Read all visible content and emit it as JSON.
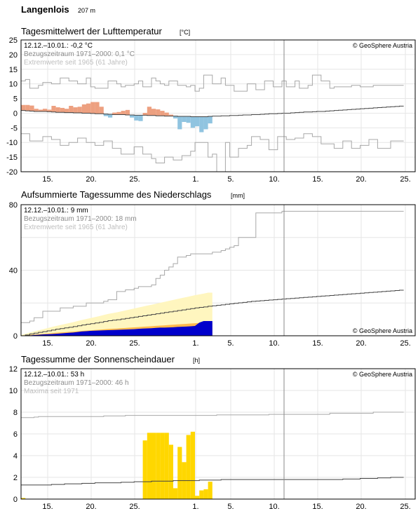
{
  "station": {
    "name": "Langenlois",
    "elevation": "207 m"
  },
  "colors": {
    "warm": "#eda080",
    "cold": "#90c4e0",
    "gridline": "#e6e6e6",
    "ref_line": "#444444",
    "extreme_line": "#a8a8a8",
    "precip_obs": "#0000cc",
    "precip_norm_fill": "#ffb84d",
    "precip_extreme_fill": "#fff6bf",
    "sun_obs": "#ffd700"
  },
  "icons": {
    "copyright": "copyright-symbol"
  },
  "chart_data": [
    {
      "type": "area",
      "title": "Tagesmittelwert der Lufttemperatur",
      "unit": "[°C]",
      "xlabel": "",
      "ylabel": "",
      "ylim": [
        -20,
        25
      ],
      "yticks": [
        "25",
        "20",
        "15",
        "10",
        "5",
        "0",
        "-5",
        "-10",
        "-15",
        "-20"
      ],
      "x_tick_labels": [
        "15.",
        "20.",
        "25.",
        "1.",
        "5.",
        "10.",
        "15.",
        "20.",
        "25."
      ],
      "annotations": {
        "period_value": "12.12.–10.01.: -0,2 °C",
        "reference": "Bezugszeitraum 1971–2000: 0,1 °C",
        "extremes": "Extremwerte seit 1965 (61 Jahre)"
      },
      "copyright": "© GeoSphere Austria",
      "grid": true,
      "series": [
        {
          "name": "Tagesmittel",
          "values": [
            2.8,
            2.8,
            2.6,
            1.5,
            1.2,
            1.5,
            1.2,
            2.5,
            2.0,
            1.8,
            1.5,
            2.5,
            2.0,
            2.2,
            3.0,
            3.3,
            3.8,
            3.8,
            2.2,
            -1.0,
            -1.5,
            0.2,
            0.4,
            0.8,
            1.1,
            -1.5,
            -2.5,
            -2.7,
            0.1,
            2.2,
            1.5,
            1.3,
            0.8,
            0.2,
            -0.5,
            -1.8,
            -5.5,
            -3.0,
            -3.3,
            -5.0,
            -4.5,
            -6.5,
            -5.5,
            -3.5
          ]
        },
        {
          "name": "Normalwert 1971–2000",
          "values": [
            0.9,
            0.8,
            0.7,
            0.6,
            0.6,
            0.6,
            0.5,
            0.4,
            0.3,
            0.3,
            0.2,
            0.2,
            0.1,
            0.1,
            0.0,
            0.0,
            -0.1,
            -0.2,
            -0.2,
            -0.3,
            -0.4,
            -0.5,
            -0.5,
            -0.5,
            -0.6,
            -0.6,
            -0.7,
            -0.7,
            -0.7,
            -0.8,
            -0.8,
            -0.9,
            -0.9,
            -1.0,
            -1.0,
            -1.0,
            -1.1,
            -1.1,
            -1.1,
            -1.2,
            -1.2,
            -1.2,
            -1.2,
            -1.1,
            -1.0,
            -1.0,
            -0.9,
            -0.9,
            -0.8,
            -0.8,
            -0.7,
            -0.6,
            -0.6,
            -0.5,
            -0.5,
            -0.4,
            -0.3,
            -0.2,
            -0.2,
            -0.1,
            0.0,
            0.0,
            0.1,
            0.2,
            0.3,
            0.4,
            0.4,
            0.5,
            0.6,
            0.6,
            0.7,
            0.8,
            0.9,
            1.0,
            1.1,
            1.2,
            1.3,
            1.4,
            1.5,
            1.6,
            1.7,
            1.8,
            1.9,
            2.0,
            2.1,
            2.2,
            2.3,
            2.4
          ]
        },
        {
          "name": "Maximum",
          "values": [
            11,
            11.5,
            8.5,
            8.5,
            9.5,
            10.5,
            10.5,
            10,
            10,
            12,
            12,
            11,
            11,
            10,
            10,
            12,
            9,
            8.5,
            8.5,
            8.5,
            11,
            11,
            10,
            9,
            9.5,
            9.5,
            10,
            11,
            9,
            9,
            12,
            11,
            10,
            9.5,
            11,
            11,
            9.5,
            9.5,
            9,
            9.5,
            7.5,
            8.5,
            13,
            13,
            10,
            10,
            12,
            9.5,
            9.5,
            7.5,
            7.5,
            7.5,
            10,
            10,
            8,
            8,
            11,
            11,
            9,
            9,
            11,
            9,
            9,
            11,
            8.5,
            8.5,
            9.5,
            13,
            13,
            11,
            11,
            8.5,
            9,
            9,
            9,
            9,
            9.5,
            9.5,
            9,
            9,
            9,
            9.5,
            9.5,
            9.5,
            9.5,
            9.5,
            9.5,
            9.5
          ]
        },
        {
          "name": "Minimum",
          "values": [
            -7,
            -7,
            -9.5,
            -9.5,
            -9.5,
            -8,
            -8,
            -9,
            -9,
            -11,
            -11,
            -10,
            -10,
            -8.5,
            -8.5,
            -10,
            -10,
            -11,
            -11,
            -9.5,
            -9.5,
            -12,
            -12,
            -14,
            -14,
            -14,
            -11.5,
            -11.5,
            -14,
            -14,
            -15.5,
            -17,
            -17,
            -15,
            -15,
            -16,
            -16,
            -14.5,
            -14.5,
            -13,
            -10,
            -10,
            -10,
            -15,
            -14,
            -20,
            -20,
            -10,
            -15,
            -15,
            -12,
            -12,
            -11,
            -8,
            -8,
            -9,
            -9,
            -12.5,
            -12.5,
            -8,
            -8,
            -9,
            -9,
            -8.5,
            -8.5,
            -7,
            -7,
            -8,
            -8,
            -10.5,
            -10.5,
            -10.5,
            -12,
            -12,
            -9.5,
            -9.5,
            -12,
            -12,
            -11,
            -11,
            -9,
            -9,
            -12,
            -12,
            -12,
            -9.5,
            -9.5,
            -9.5
          ]
        }
      ]
    },
    {
      "type": "area",
      "title": "Aufsummierte Tagessumme des Niederschlags",
      "unit": "[mm]",
      "xlabel": "",
      "ylabel": "",
      "ylim": [
        0,
        80
      ],
      "yticks": [
        "80",
        "40",
        "0"
      ],
      "x_tick_labels": [
        "15.",
        "20.",
        "25.",
        "1.",
        "5.",
        "10.",
        "15.",
        "20.",
        "25."
      ],
      "annotations": {
        "period_value": "12.12.–10.01.: 9 mm",
        "reference": "Bezugszeitraum 1971–2000: 18 mm",
        "extremes": "Extremwerte seit 1965 (61 Jahre)"
      },
      "copyright": "© GeoSphere Austria",
      "grid": true,
      "series": [
        {
          "name": "Aufsummiert",
          "values": [
            0,
            0,
            0.2,
            0.5,
            0.6,
            0.8,
            0.9,
            1.0,
            1.2,
            1.4,
            1.6,
            1.8,
            2.0,
            2.3,
            2.6,
            2.8,
            3.0,
            3.1,
            3.2,
            3.3,
            3.4,
            3.5,
            3.6,
            3.7,
            3.8,
            3.9,
            4.0,
            4.2,
            4.4,
            4.5,
            4.6,
            4.8,
            5.0,
            5.0,
            5.1,
            5.2,
            5.4,
            5.5,
            5.6,
            5.8,
            6.0,
            8.0,
            9.0,
            9.0
          ]
        },
        {
          "name": "Normalwert 1971–2000",
          "values": [
            0.0,
            0.5,
            1.1,
            1.6,
            2.1,
            2.5,
            3.0,
            3.5,
            4.0,
            4.4,
            4.8,
            5.2,
            5.6,
            6.1,
            6.6,
            7.0,
            7.4,
            7.8,
            8.2,
            8.7,
            9.2,
            9.5,
            9.8,
            10.2,
            10.6,
            11.0,
            11.4,
            11.8,
            12.2,
            12.6,
            13.0,
            13.4,
            13.8,
            14.2,
            14.6,
            15.0,
            15.4,
            15.8,
            16.2,
            16.6,
            17.0,
            17.3,
            17.6,
            18.0,
            18.3,
            18.6,
            18.9,
            19.2,
            19.5,
            19.8,
            20.1,
            20.4,
            20.7,
            21.0,
            21.2,
            21.4,
            21.6,
            21.8,
            22.0,
            22.2,
            22.4,
            22.6,
            22.8,
            23.0,
            23.2,
            23.4,
            23.6,
            23.8,
            24.0,
            24.2,
            24.4,
            24.6,
            24.8,
            25.0,
            25.2,
            25.4,
            25.6,
            25.8,
            26.0,
            26.2,
            26.4,
            26.6,
            26.8,
            27.0,
            27.2,
            27.4,
            27.6,
            27.8
          ]
        },
        {
          "name": "Maximum",
          "values": [
            8,
            8,
            9,
            11,
            11,
            15,
            15,
            15,
            15,
            17,
            17,
            17,
            18,
            18,
            18,
            20,
            20,
            20,
            20,
            21,
            22,
            22,
            27,
            27,
            28,
            28,
            29,
            30,
            30,
            30,
            31,
            35,
            37,
            40,
            42,
            44,
            48,
            48,
            49,
            50,
            50,
            50,
            50,
            50,
            51,
            51,
            52,
            53,
            54,
            55,
            60,
            60,
            60,
            60,
            75,
            75,
            75,
            75,
            75,
            75,
            76,
            76,
            76,
            76,
            76,
            76,
            76,
            76,
            76,
            76,
            76,
            76,
            76,
            76,
            76,
            76,
            76,
            76,
            76,
            76,
            76,
            76,
            76,
            76,
            76,
            76,
            76,
            76
          ]
        }
      ]
    },
    {
      "type": "bar",
      "title": "Tagessumme der Sonnenscheindauer",
      "unit": "[h]",
      "xlabel": "",
      "ylabel": "",
      "ylim": [
        0,
        12
      ],
      "yticks": [
        "12",
        "10",
        "8",
        "6",
        "4",
        "2",
        "0"
      ],
      "x_tick_labels": [
        "15.",
        "20.",
        "25.",
        "1.",
        "5.",
        "10.",
        "15.",
        "20.",
        "25."
      ],
      "annotations": {
        "period_value": "12.12.–10.01.: 53 h",
        "reference": "Bezugszeitraum 1971–2000: 46 h",
        "extremes": "Maxima seit 1971"
      },
      "copyright": "© GeoSphere Austria",
      "grid": true,
      "series": [
        {
          "name": "Sonnenscheindauer",
          "values": [
            0.1,
            0,
            0,
            0,
            0,
            0,
            0,
            0,
            0,
            0,
            0,
            0,
            0,
            0,
            0,
            0,
            0,
            0,
            0,
            0,
            0,
            0,
            0,
            0,
            0,
            0,
            0,
            0,
            5.4,
            6.1,
            6.1,
            6.1,
            6.1,
            6.1,
            5.0,
            1.0,
            4.8,
            3.4,
            5.9,
            6.2,
            0.3,
            0.8,
            0.9,
            1.6
          ]
        },
        {
          "name": "Normalwert 1971–2000",
          "values": [
            1.3,
            1.3,
            1.3,
            1.3,
            1.3,
            1.3,
            1.3,
            1.35,
            1.35,
            1.35,
            1.4,
            1.4,
            1.4,
            1.4,
            1.45,
            1.45,
            1.45,
            1.5,
            1.5,
            1.5,
            1.5,
            1.5,
            1.5,
            1.55,
            1.55,
            1.55,
            1.6,
            1.6,
            1.6,
            1.6,
            1.65,
            1.65,
            1.65,
            1.65,
            1.65,
            1.7,
            1.7,
            1.7,
            1.7,
            1.7,
            1.7,
            1.75,
            1.75,
            1.75,
            1.75,
            1.75,
            1.8,
            1.8,
            1.8,
            1.8,
            1.8,
            1.8,
            1.8,
            1.8,
            1.8,
            1.8,
            1.8,
            1.8,
            1.8,
            1.8,
            1.8,
            1.8,
            1.8,
            1.8,
            1.8,
            1.8,
            1.8,
            1.8,
            1.8,
            1.8,
            1.8,
            1.8,
            1.8,
            1.8,
            1.85,
            1.85,
            1.85,
            1.85,
            1.9,
            1.9,
            1.9,
            1.9,
            1.95,
            1.95,
            1.95,
            2.0,
            2.0,
            2.0
          ]
        },
        {
          "name": "Maximum",
          "values": [
            7.5,
            7.5,
            7.5,
            7.55,
            7.6,
            7.6,
            7.6,
            7.6,
            7.6,
            7.6,
            7.6,
            7.6,
            7.6,
            7.6,
            7.6,
            7.6,
            7.6,
            7.6,
            7.6,
            7.65,
            7.65,
            7.65,
            7.65,
            7.65,
            7.7,
            7.7,
            7.7,
            7.7,
            7.7,
            7.7,
            7.7,
            7.7,
            7.7,
            7.7,
            7.7,
            7.7,
            7.7,
            7.7,
            7.7,
            7.7,
            7.7,
            7.7,
            7.7,
            7.7,
            7.7,
            7.75,
            7.75,
            7.75,
            7.75,
            7.75,
            7.75,
            7.75,
            7.75,
            7.75,
            7.75,
            7.75,
            7.75,
            7.8,
            7.8,
            7.8,
            7.8,
            7.8,
            7.8,
            7.8,
            7.8,
            7.8,
            7.8,
            7.8,
            7.8,
            7.8,
            7.8,
            7.9,
            7.9,
            7.9,
            7.9,
            7.9,
            7.9,
            7.9,
            7.9,
            7.9,
            7.9,
            8.0,
            8.0,
            8.0,
            8.0,
            8.0,
            8.0,
            8.0
          ]
        }
      ]
    }
  ]
}
